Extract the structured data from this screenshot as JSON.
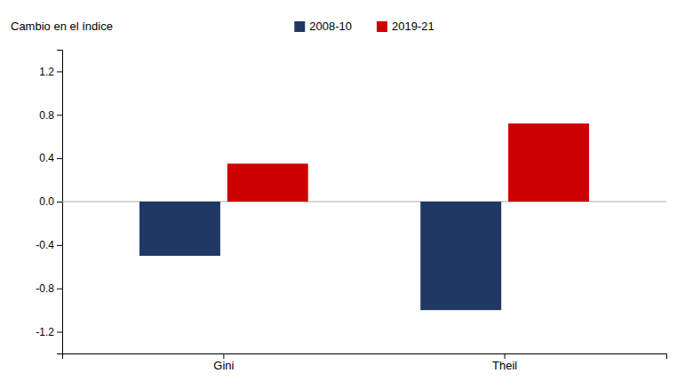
{
  "chart_data": {
    "type": "bar",
    "ylabel": "Cambio en el índice",
    "categories": [
      "Gini",
      "Theil"
    ],
    "series": [
      {
        "name": "2008-10",
        "color": "#1F3864",
        "values": [
          -0.5,
          -1.0
        ]
      },
      {
        "name": "2019-21",
        "color": "#CC0000",
        "values": [
          0.35,
          0.72
        ]
      }
    ],
    "ylim": [
      -1.4,
      1.4
    ],
    "yticks": [
      -1.2,
      -0.8,
      -0.4,
      {
        "value": 0.0,
        "label": "0.0"
      },
      0.4,
      0.8,
      1.2
    ],
    "grid": false,
    "legend": "top"
  }
}
